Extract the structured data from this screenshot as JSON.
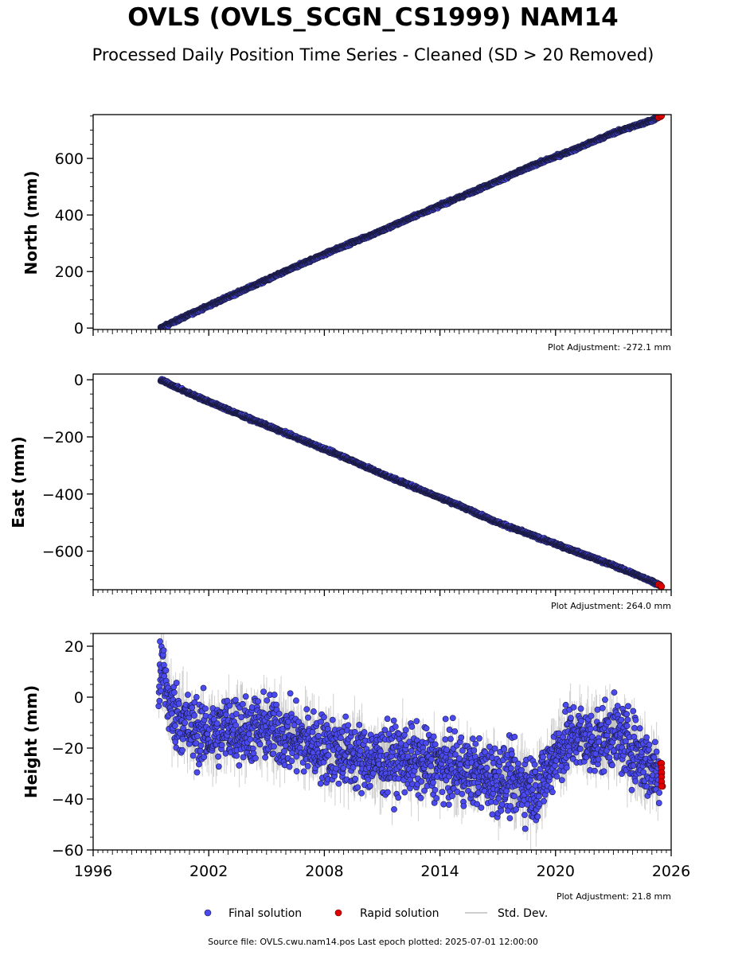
{
  "header": {
    "title": "OVLS (OVLS_SCGN_CS1999) NAM14",
    "subtitle": "Processed Daily Position Time Series - Cleaned (SD > 20 Removed)"
  },
  "colors": {
    "final": "#4a4af0",
    "final_edge": "#1a1a40",
    "rapid": "#e00000",
    "stddev": "#bdbdbd"
  },
  "legend": {
    "final_label": "Final solution",
    "rapid_label": "Rapid solution",
    "std_label": "Std. Dev."
  },
  "footer": {
    "source": "Source file: OVLS.cwu.nam14.pos  Last epoch plotted: 2025-07-01 12:00:00"
  },
  "chart_data": [
    {
      "type": "scatter",
      "ylabel": "North (mm)",
      "adjustment": "Plot Adjustment: -272.1 mm",
      "xlim": [
        1996,
        2026
      ],
      "ylim": [
        -5,
        755
      ],
      "yticks": [
        0,
        200,
        400,
        600
      ],
      "ytick_labels": [
        "0",
        "200",
        "400",
        "600"
      ],
      "series": [
        {
          "x": [
            1999.5,
            2001.0,
            2003.0,
            2005.0,
            2007.0,
            2009.0,
            2011.0,
            2013.0,
            2015.0,
            2017.0,
            2019.0,
            2021.0,
            2023.0,
            2025.0,
            2025.5
          ],
          "y": [
            0,
            48,
            110,
            170,
            232,
            290,
            345,
            405,
            462,
            520,
            580,
            632,
            690,
            735,
            750
          ]
        },
        {
          "x": [
            2025.35,
            2025.45,
            2025.5
          ],
          "y": [
            745,
            748,
            751
          ]
        }
      ]
    },
    {
      "type": "scatter",
      "ylabel": "East (mm)",
      "adjustment": "Plot Adjustment: 264.0 mm",
      "xlim": [
        1996,
        2026
      ],
      "ylim": [
        -735,
        20
      ],
      "yticks": [
        0,
        -200,
        -400,
        -600
      ],
      "ytick_labels": [
        "0",
        "−200",
        "−400",
        "−600"
      ],
      "series": [
        {
          "x": [
            1999.5,
            2001.0,
            2003.0,
            2005.0,
            2007.0,
            2009.0,
            2011.0,
            2013.0,
            2015.0,
            2017.0,
            2019.0,
            2021.0,
            2023.0,
            2025.0,
            2025.5
          ],
          "y": [
            0,
            -48,
            -105,
            -160,
            -215,
            -270,
            -330,
            -385,
            -440,
            -500,
            -550,
            -600,
            -650,
            -705,
            -722
          ]
        },
        {
          "x": [
            2025.35,
            2025.45,
            2025.5
          ],
          "y": [
            -717,
            -720,
            -724
          ]
        }
      ]
    },
    {
      "type": "scatter",
      "ylabel": "Height (mm)",
      "adjustment": "Plot Adjustment: 21.8 mm",
      "xlim": [
        1996,
        2026
      ],
      "ylim": [
        -60,
        25
      ],
      "yticks": [
        20,
        0,
        -20,
        -40,
        -60
      ],
      "ytick_labels": [
        "20",
        "0",
        "−20",
        "−40",
        "−60"
      ],
      "xticks": [
        1996,
        2002,
        2008,
        2014,
        2020,
        2026
      ],
      "xtick_labels": [
        "1996",
        "2002",
        "2008",
        "2014",
        "2020",
        "2026"
      ],
      "series": [
        {
          "x": [
            1999.4,
            1999.6,
            2000.0,
            2001.0,
            2002.0,
            2003.0,
            2004.0,
            2005.0,
            2006.0,
            2007.0,
            2008.0,
            2009.0,
            2010.0,
            2011.0,
            2012.0,
            2013.0,
            2014.0,
            2015.0,
            2016.0,
            2017.0,
            2018.0,
            2019.0,
            2019.5,
            2020.0,
            2021.0,
            2022.0,
            2023.0,
            2024.0,
            2025.0,
            2025.4
          ],
          "y": [
            5,
            12,
            -5,
            -12,
            -15,
            -12,
            -13,
            -12,
            -15,
            -18,
            -20,
            -22,
            -24,
            -25,
            -24,
            -26,
            -27,
            -28,
            -30,
            -32,
            -33,
            -36,
            -30,
            -22,
            -15,
            -18,
            -14,
            -20,
            -28,
            -30
          ]
        },
        {
          "x": [
            2025.45,
            2025.5,
            2025.55
          ],
          "y": [
            -26,
            -30,
            -35
          ]
        }
      ]
    }
  ]
}
